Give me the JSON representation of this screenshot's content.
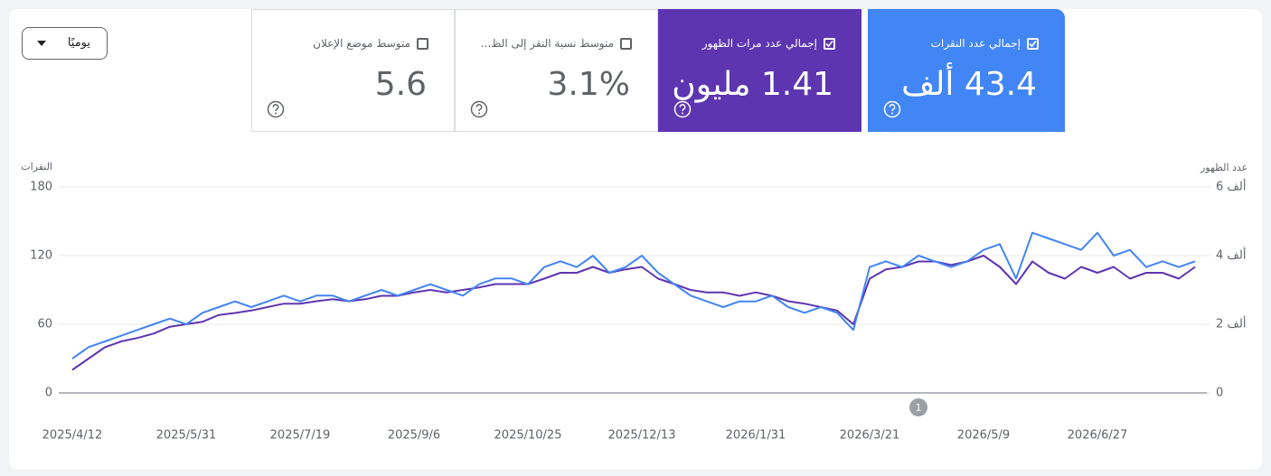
{
  "controls": {
    "dropdown": "يوميًا"
  },
  "cards": [
    {
      "label": "إجمالي عدد النقرات",
      "value": "43.4 ألف",
      "checked": true,
      "color": "#4285f4"
    },
    {
      "label": "إجمالي عدد مرات الظهور",
      "value": "1.41 مليون",
      "checked": true,
      "color": "#5e35b1"
    },
    {
      "label": "متوسط نسبة النقر إلى الظ...",
      "value": "3.1%",
      "checked": false
    },
    {
      "label": "متوسط موضع الإعلان",
      "value": "5.6",
      "checked": false
    }
  ],
  "chart_data": {
    "type": "line",
    "y_label": "النقرات",
    "y2_label": "عدد الظهور",
    "x": [
      "2025/4/12",
      null,
      null,
      null,
      null,
      null,
      null,
      "2025/5/31",
      null,
      null,
      null,
      null,
      null,
      null,
      "2025/7/19",
      null,
      null,
      null,
      null,
      null,
      null,
      "2025/9/6",
      null,
      null,
      null,
      null,
      null,
      null,
      "2025/10/25",
      null,
      null,
      null,
      null,
      null,
      null,
      "2025/12/13",
      null,
      null,
      null,
      null,
      null,
      null,
      "2026/1/31",
      null,
      null,
      null,
      null,
      null,
      null,
      "2026/3/21",
      null,
      null,
      null,
      null,
      null,
      null,
      "2026/5/9",
      null,
      null,
      null,
      null,
      null,
      null,
      "2026/6/27",
      null,
      null,
      null,
      null,
      null,
      null
    ],
    "ylim": [
      0,
      180
    ],
    "yticks": [
      0,
      60,
      120,
      180
    ],
    "y2lim": [
      0,
      6000
    ],
    "y2ticks": [
      {
        "value": 0,
        "label": "0"
      },
      {
        "value": 2000,
        "label": "2 ألف"
      },
      {
        "value": 4000,
        "label": "4 ألف"
      },
      {
        "value": 6000,
        "label": "6 ألف"
      }
    ],
    "grid": true,
    "annotations": [
      {
        "x": "2026/3/21",
        "text": "1"
      }
    ],
    "series": [
      {
        "name": "إجمالي عدد النقرات",
        "color": "#4285f4",
        "values": [
          30,
          40,
          45,
          50,
          55,
          60,
          65,
          60,
          70,
          75,
          80,
          75,
          80,
          85,
          80,
          85,
          85,
          80,
          85,
          90,
          85,
          90,
          95,
          90,
          85,
          95,
          100,
          100,
          95,
          110,
          115,
          110,
          120,
          105,
          110,
          120,
          105,
          95,
          85,
          80,
          75,
          80,
          80,
          85,
          75,
          70,
          75,
          70,
          55,
          110,
          115,
          110,
          120,
          115,
          110,
          115,
          125,
          130,
          100,
          140,
          135,
          130,
          125,
          140,
          120,
          125,
          110,
          115,
          110,
          115
        ]
      },
      {
        "name": "إجمالي عدد مرات الظهور",
        "color": "#5e35b1",
        "axis": "y2",
        "values": [
          670,
          1000,
          1330,
          1500,
          1600,
          1730,
          1930,
          2000,
          2070,
          2270,
          2330,
          2400,
          2500,
          2600,
          2600,
          2670,
          2730,
          2670,
          2730,
          2830,
          2830,
          2930,
          3000,
          2930,
          3000,
          3070,
          3170,
          3170,
          3170,
          3330,
          3500,
          3500,
          3670,
          3500,
          3600,
          3670,
          3330,
          3170,
          3000,
          2930,
          2930,
          2830,
          2930,
          2830,
          2670,
          2600,
          2500,
          2400,
          2000,
          3330,
          3600,
          3670,
          3830,
          3830,
          3730,
          3830,
          4000,
          3670,
          3170,
          3830,
          3500,
          3330,
          3670,
          3500,
          3670,
          3330,
          3500,
          3500,
          3330,
          3670
        ]
      }
    ]
  }
}
